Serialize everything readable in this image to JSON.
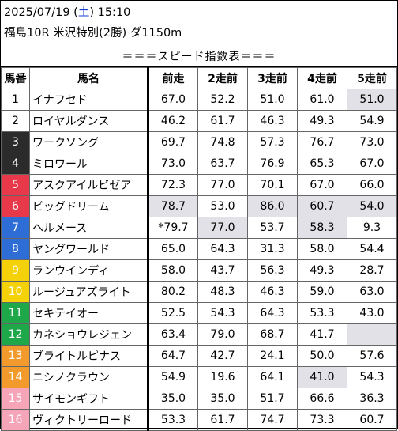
{
  "header": {
    "date_prefix": "2025/07/19 (",
    "weekday": "土",
    "date_suffix": ") 15:10",
    "race_info": "福島10R 米沢特別(2勝) ダ1150m"
  },
  "title": "＝＝＝スピード指数表＝＝＝",
  "columns": [
    "馬番",
    "馬名",
    "前走",
    "2走前",
    "3走前",
    "4走前",
    "5走前"
  ],
  "colors": {
    "gate1": "#ffffff",
    "gate2": "#ffffff",
    "gate3": "#2b2b2b",
    "gate4": "#2b2b2b",
    "gate5": "#e8394a",
    "gate6": "#e8394a",
    "gate7": "#2f6dd6",
    "gate8": "#2f6dd6",
    "gate9": "#f5d10a",
    "gate10": "#f5d10a",
    "gate11": "#1fa84a",
    "gate12": "#1fa84a",
    "gate13": "#f39a2d",
    "gate14": "#f39a2d",
    "gate15": "#f6a5b9",
    "gate16": "#f6a5b9",
    "highlight": "#e1e1e7"
  },
  "rows": [
    {
      "no": "1",
      "name": "イナフセド",
      "v": [
        "67.0",
        "52.2",
        "51.0",
        "61.0",
        "51.0"
      ],
      "hl": [
        false,
        false,
        false,
        false,
        true
      ],
      "fg": "#000",
      "bg": "#ffffff"
    },
    {
      "no": "2",
      "name": "ロイヤルダンス",
      "v": [
        "46.2",
        "61.7",
        "46.3",
        "49.3",
        "54.9"
      ],
      "hl": [
        false,
        false,
        false,
        false,
        false
      ],
      "fg": "#000",
      "bg": "#ffffff"
    },
    {
      "no": "3",
      "name": "ワークソング",
      "v": [
        "69.7",
        "74.8",
        "57.3",
        "76.7",
        "73.0"
      ],
      "hl": [
        false,
        false,
        false,
        false,
        false
      ],
      "fg": "#fff",
      "bg": "#2b2b2b"
    },
    {
      "no": "4",
      "name": "ミロワール",
      "v": [
        "73.0",
        "63.7",
        "76.9",
        "65.3",
        "67.0"
      ],
      "hl": [
        false,
        false,
        false,
        false,
        false
      ],
      "fg": "#fff",
      "bg": "#2b2b2b"
    },
    {
      "no": "5",
      "name": "アスクアイルビゼア",
      "v": [
        "72.3",
        "77.0",
        "70.1",
        "67.0",
        "66.0"
      ],
      "hl": [
        false,
        false,
        false,
        false,
        false
      ],
      "fg": "#fff",
      "bg": "#e8394a"
    },
    {
      "no": "6",
      "name": "ビッグドリーム",
      "v": [
        "78.7",
        "53.0",
        "86.0",
        "60.7",
        "54.0"
      ],
      "hl": [
        true,
        false,
        true,
        true,
        true
      ],
      "fg": "#fff",
      "bg": "#e8394a"
    },
    {
      "no": "7",
      "name": "ヘルメース",
      "v": [
        "*79.7",
        "77.0",
        "53.7",
        "58.3",
        "9.3"
      ],
      "hl": [
        false,
        true,
        false,
        true,
        false
      ],
      "fg": "#fff",
      "bg": "#2f6dd6"
    },
    {
      "no": "8",
      "name": "ヤングワールド",
      "v": [
        "65.0",
        "64.3",
        "31.3",
        "58.0",
        "54.4"
      ],
      "hl": [
        false,
        false,
        false,
        false,
        false
      ],
      "fg": "#fff",
      "bg": "#2f6dd6"
    },
    {
      "no": "9",
      "name": "ランウインディ",
      "v": [
        "58.0",
        "43.7",
        "56.3",
        "49.3",
        "28.7"
      ],
      "hl": [
        false,
        false,
        false,
        false,
        false
      ],
      "fg": "#fff",
      "bg": "#f5d10a"
    },
    {
      "no": "10",
      "name": "ルージュアズライト",
      "v": [
        "80.2",
        "48.3",
        "46.3",
        "59.0",
        "63.0"
      ],
      "hl": [
        false,
        false,
        false,
        false,
        false
      ],
      "fg": "#fff",
      "bg": "#f5d10a"
    },
    {
      "no": "11",
      "name": "セキテイオー",
      "v": [
        "52.5",
        "54.3",
        "64.3",
        "53.3",
        "43.0"
      ],
      "hl": [
        false,
        false,
        false,
        false,
        false
      ],
      "fg": "#fff",
      "bg": "#1fa84a"
    },
    {
      "no": "12",
      "name": "カネショウレジェン",
      "v": [
        "63.4",
        "79.0",
        "68.7",
        "41.7",
        ""
      ],
      "hl": [
        false,
        false,
        false,
        false,
        true
      ],
      "fg": "#fff",
      "bg": "#1fa84a"
    },
    {
      "no": "13",
      "name": "ブライトルピナス",
      "v": [
        "64.7",
        "42.7",
        "24.1",
        "50.0",
        "57.6"
      ],
      "hl": [
        false,
        false,
        false,
        false,
        false
      ],
      "fg": "#fff",
      "bg": "#f39a2d"
    },
    {
      "no": "14",
      "name": "ニシノクラウン",
      "v": [
        "54.9",
        "19.6",
        "64.1",
        "41.0",
        "54.3"
      ],
      "hl": [
        false,
        false,
        false,
        true,
        false
      ],
      "fg": "#fff",
      "bg": "#f39a2d"
    },
    {
      "no": "15",
      "name": "サイモンギフト",
      "v": [
        "35.0",
        "35.0",
        "51.7",
        "66.6",
        "36.3"
      ],
      "hl": [
        false,
        false,
        false,
        false,
        false
      ],
      "fg": "#fff",
      "bg": "#f6a5b9"
    },
    {
      "no": "16",
      "name": "ヴィクトリーロード",
      "v": [
        "53.3",
        "61.7",
        "74.7",
        "73.3",
        "60.7"
      ],
      "hl": [
        false,
        false,
        false,
        false,
        false
      ],
      "fg": "#fff",
      "bg": "#f6a5b9"
    }
  ]
}
